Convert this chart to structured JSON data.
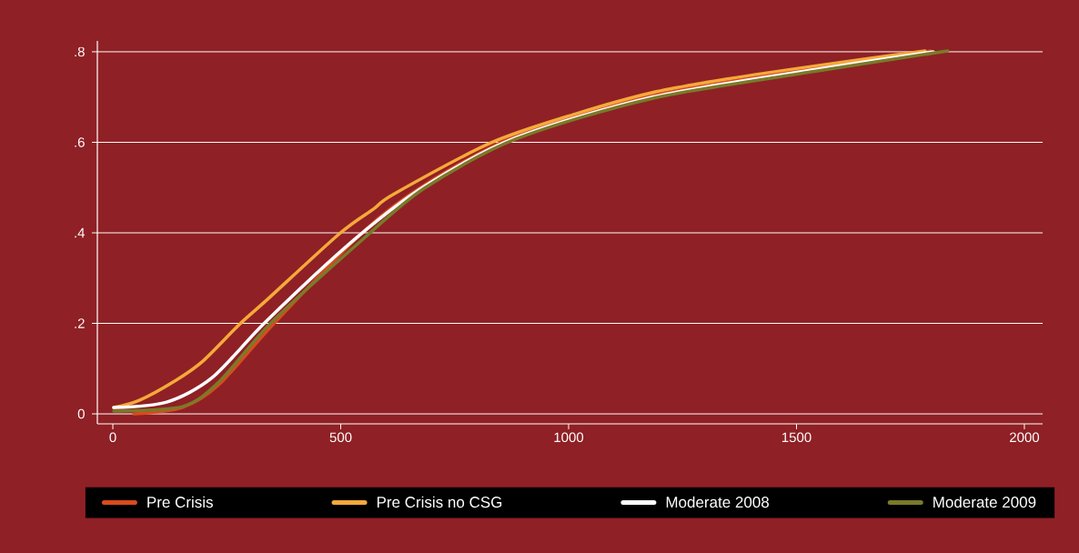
{
  "chart_data": {
    "type": "line",
    "xlim": [
      -34,
      2040
    ],
    "ylim": [
      -0.022,
      0.824
    ],
    "xticks": [
      0,
      500,
      1000,
      1500,
      2000
    ],
    "yticks": [
      {
        "value": 0,
        "label": "0"
      },
      {
        "value": 0.2,
        "label": ".2"
      },
      {
        "value": 0.4,
        "label": ".4"
      },
      {
        "value": 0.6,
        "label": ".6"
      },
      {
        "value": 0.8,
        "label": ".8"
      }
    ],
    "grid": "y",
    "legend": "bottom",
    "line_style": "solid",
    "series": [
      {
        "name": "Pre Crisis",
        "color": "#d94a1e",
        "x": [
          46,
          152,
          232,
          351,
          551,
          684,
          884,
          1184,
          1549,
          1794
        ],
        "values": [
          0,
          0.014,
          0.064,
          0.197,
          0.404,
          0.506,
          0.613,
          0.704,
          0.764,
          0.802
        ]
      },
      {
        "name": "Pre Crisis no CSG",
        "color": "#f5a93a",
        "x": [
          2,
          58,
          138,
          198,
          277,
          337,
          497,
          571,
          617,
          830,
          1016,
          1184,
          1349,
          1549,
          1782
        ],
        "values": [
          0.014,
          0.03,
          0.074,
          0.117,
          0.197,
          0.251,
          0.398,
          0.452,
          0.486,
          0.599,
          0.663,
          0.71,
          0.74,
          0.77,
          0.802
        ]
      },
      {
        "name": "Moderate 2008",
        "color": "#ffffff",
        "x": [
          2,
          118,
          218,
          337,
          531,
          684,
          884,
          1184,
          1549,
          1800
        ],
        "values": [
          0.014,
          0.026,
          0.08,
          0.205,
          0.386,
          0.503,
          0.61,
          0.7,
          0.762,
          0.8
        ]
      },
      {
        "name": "Moderate 2009",
        "color": "#7a7a2a",
        "x": [
          2,
          152,
          232,
          351,
          551,
          684,
          884,
          1184,
          1549,
          1832
        ],
        "values": [
          0.006,
          0.016,
          0.07,
          0.205,
          0.388,
          0.499,
          0.607,
          0.697,
          0.758,
          0.802
        ]
      }
    ]
  }
}
